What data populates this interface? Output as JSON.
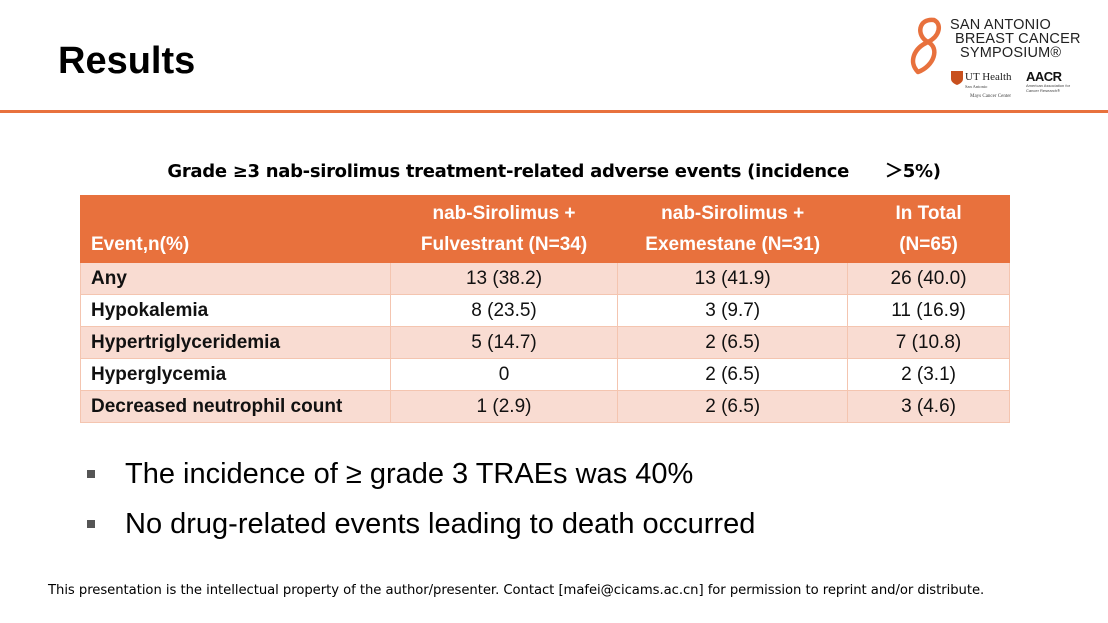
{
  "slide": {
    "title": "Results"
  },
  "logo": {
    "line1": "SAN ANTONIO",
    "line2": "BREAST CANCER",
    "line3": "SYMPOSIUM®",
    "ut_health": "UT Health",
    "ut_sub1": "San Antonio",
    "ut_sub2": "Mays Cancer Center",
    "aacr": "AACR",
    "aacr_sub": "American Association for Cancer Research®"
  },
  "table": {
    "caption": "Grade ≥3 nab-sirolimus treatment-related adverse events (incidence",
    "caption_tail": "＞5%)",
    "headers": {
      "event": "Event,n(%)",
      "col2_line1": "nab-Sirolimus +",
      "col2_line2": "Fulvestrant (N=34)",
      "col3_line1": "nab-Sirolimus +",
      "col3_line2": "Exemestane (N=31)",
      "col4_line1": "In Total",
      "col4_line2": "(N=65)"
    },
    "rows": [
      {
        "event": "Any",
        "fulvestrant": "13 (38.2)",
        "exemestane": "13 (41.9)",
        "total": "26 (40.0)"
      },
      {
        "event": "Hypokalemia",
        "fulvestrant": "8 (23.5)",
        "exemestane": "3 (9.7)",
        "total": "11 (16.9)"
      },
      {
        "event": "Hypertriglyceridemia",
        "fulvestrant": "5 (14.7)",
        "exemestane": "2 (6.5)",
        "total": "7 (10.8)"
      },
      {
        "event": "Hyperglycemia",
        "fulvestrant": "0",
        "exemestane": "2 (6.5)",
        "total": "2 (3.1)"
      },
      {
        "event": "Decreased neutrophil count",
        "fulvestrant": "1 (2.9)",
        "exemestane": "2 (6.5)",
        "total": "3 (4.6)"
      }
    ]
  },
  "bullets": [
    "The incidence of ≥ grade 3 TRAEs was 40%",
    "No drug-related events leading to death occurred"
  ],
  "footer": "This presentation is the intellectual property of the author/presenter. Contact [mafei@cicams.ac.cn] for permission to reprint and/or distribute.",
  "colors": {
    "accent": "#e8713d",
    "row_shade": "#f9dcd2"
  }
}
